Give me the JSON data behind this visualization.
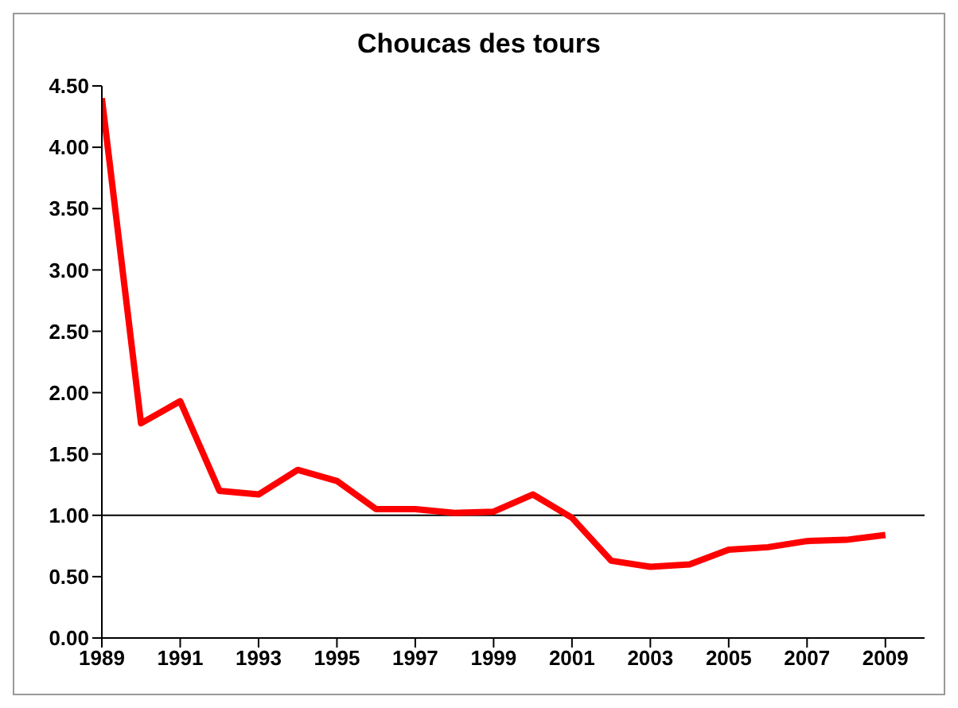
{
  "chart_data": {
    "type": "line",
    "title": "Choucas des tours",
    "x": [
      1989,
      1990,
      1991,
      1992,
      1993,
      1994,
      1995,
      1996,
      1997,
      1998,
      1999,
      2000,
      2001,
      2002,
      2003,
      2004,
      2005,
      2006,
      2007,
      2008,
      2009
    ],
    "series": [
      {
        "color": "#ff0000",
        "values": [
          4.4,
          1.75,
          1.93,
          1.2,
          1.17,
          1.37,
          1.28,
          1.05,
          1.05,
          1.02,
          1.03,
          1.17,
          0.98,
          0.63,
          0.58,
          0.6,
          0.72,
          0.74,
          0.79,
          0.8,
          0.84
        ]
      }
    ],
    "xlim": [
      1989,
      2010
    ],
    "xticks": [
      1989,
      1991,
      1993,
      1995,
      1997,
      1999,
      2001,
      2003,
      2005,
      2007,
      2009
    ],
    "ylim": [
      0,
      4.5
    ],
    "yticks": [
      {
        "value": 0,
        "label": "0.00"
      },
      {
        "value": 0.5,
        "label": "0.50"
      },
      {
        "value": 1,
        "label": "1.00"
      },
      {
        "value": 1.5,
        "label": "1.50"
      },
      {
        "value": 2,
        "label": "2.00"
      },
      {
        "value": 2.5,
        "label": "2.50"
      },
      {
        "value": 3,
        "label": "3.00"
      },
      {
        "value": 3.5,
        "label": "3.50"
      },
      {
        "value": 4,
        "label": "4.00"
      },
      {
        "value": 4.5,
        "label": "4.50"
      }
    ],
    "ref_lines": [
      {
        "axis": "y",
        "value": 1,
        "color": "#000000"
      }
    ],
    "grid": false,
    "legend": false,
    "marker": "none",
    "line_style": "solid"
  }
}
